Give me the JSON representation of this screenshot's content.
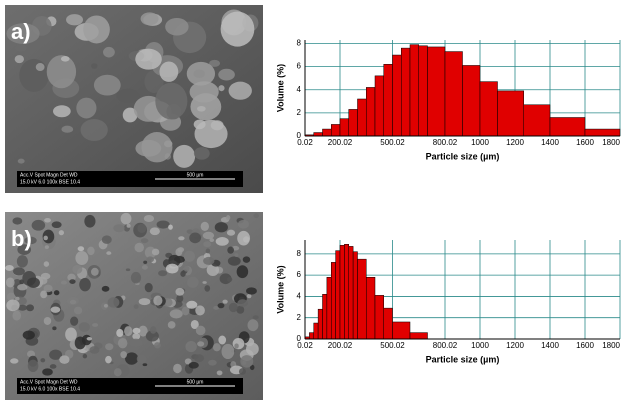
{
  "panels": [
    {
      "label": "a)",
      "sem_info": [
        "Acc.V  Spot Magn   Det  WD",
        "15.0 kV 6.0  100x   BSE 10.4"
      ],
      "scale_bar": "500 µm"
    },
    {
      "label": "b)",
      "sem_info": [
        "Acc.V  Spot Magn   Det  WD",
        "15.0 kV 6.0  100x   BSE 10.4"
      ],
      "scale_bar": "500 µm"
    }
  ],
  "chart_data": [
    {
      "type": "histogram",
      "xlabel": "Particle size (µm)",
      "ylabel": "Volume (%)",
      "color": "#e00000",
      "grid": true,
      "bins": [
        0.02,
        50,
        100,
        150,
        200,
        250,
        300,
        350,
        400,
        450,
        500,
        550,
        600,
        650,
        700,
        800,
        900,
        1000,
        1100,
        1250,
        1400,
        1600,
        1800
      ],
      "values": [
        0.1,
        0.3,
        0.6,
        1,
        1.5,
        2.3,
        3.2,
        4.2,
        5.2,
        6.2,
        7,
        7.6,
        7.9,
        7.8,
        7.7,
        7.3,
        6.1,
        4.7,
        3.9,
        2.7,
        1.6,
        0.6
      ],
      "xlim": [
        0.02,
        1800
      ],
      "xticks": [
        0.02,
        200.02,
        500.02,
        800.02,
        1000,
        1200,
        1400,
        1600,
        1800
      ],
      "ylim": [
        0,
        8.3
      ],
      "yticks": [
        0,
        2,
        4,
        6,
        8
      ]
    },
    {
      "type": "histogram",
      "xlabel": "Particle size (µm)",
      "ylabel": "Volume (%)",
      "color": "#e00000",
      "grid": true,
      "bins": [
        0.02,
        25,
        50,
        75,
        100,
        125,
        150,
        175,
        200,
        225,
        250,
        275,
        300,
        350,
        400,
        450,
        500,
        600,
        700
      ],
      "values": [
        0.2,
        0.6,
        1.5,
        2.8,
        4.2,
        5.8,
        7.2,
        8.3,
        8.8,
        8.9,
        8.7,
        8.2,
        7.5,
        5.8,
        4.1,
        2.9,
        1.6,
        0.6
      ],
      "xlim": [
        0.02,
        1800
      ],
      "xticks": [
        0.02,
        200.02,
        500.02,
        800.02,
        1000,
        1200,
        1400,
        1600,
        1800
      ],
      "ylim": [
        0,
        9.3
      ],
      "yticks": [
        0,
        2,
        4,
        6,
        8
      ]
    }
  ]
}
